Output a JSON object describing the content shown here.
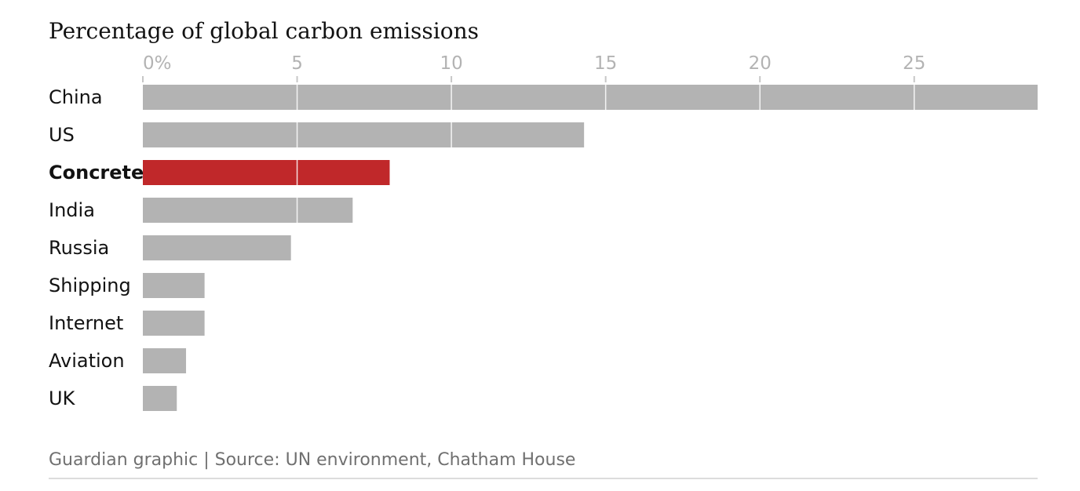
{
  "chart_data": {
    "type": "bar",
    "orientation": "horizontal",
    "title": "Percentage of global carbon emissions",
    "categories": [
      "China",
      "US",
      "Concrete",
      "India",
      "Russia",
      "Shipping",
      "Internet",
      "Aviation",
      "UK"
    ],
    "values": [
      29,
      14.3,
      8,
      6.8,
      4.8,
      2,
      2,
      1.4,
      1.1
    ],
    "highlight": "Concrete",
    "xlim": [
      0,
      29
    ],
    "xticks": [
      0,
      5,
      10,
      15,
      20,
      25
    ],
    "xtick_labels": [
      "0%",
      "5",
      "10",
      "15",
      "20",
      "25"
    ],
    "grid": true,
    "colors": {
      "bar": "#b3b3b3",
      "highlight": "#c0282a",
      "grid": "#ffffff",
      "tick": "#c7c7c7",
      "footer_rule": "#dcdcdc"
    }
  },
  "footer": {
    "source": "Guardian graphic | Source: UN environment, Chatham House"
  }
}
